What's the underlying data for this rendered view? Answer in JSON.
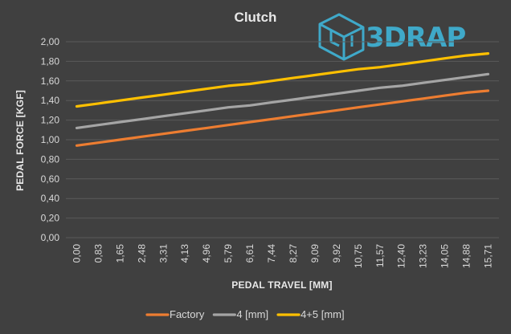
{
  "logo": {
    "text": "3DRAP",
    "color": "#3fa9c9"
  },
  "chart_data": {
    "type": "line",
    "title": "Clutch",
    "xlabel": "PEDAL TRAVEL [MM]",
    "ylabel": "PEDAL FORCE [KGF]",
    "ylim": [
      0,
      2
    ],
    "y_ticks": [
      "0,00",
      "0,20",
      "0,40",
      "0,60",
      "0,80",
      "1,00",
      "1,20",
      "1,40",
      "1,60",
      "1,80",
      "2,00"
    ],
    "categories": [
      "0,00",
      "0,83",
      "1,65",
      "2,48",
      "3,31",
      "4,13",
      "4,96",
      "5,79",
      "6,61",
      "7,44",
      "8,27",
      "9,09",
      "9,92",
      "10,75",
      "11,57",
      "12,40",
      "13,23",
      "14,05",
      "14,88",
      "15,71"
    ],
    "x": [
      0.0,
      0.83,
      1.65,
      2.48,
      3.31,
      4.13,
      4.96,
      5.79,
      6.61,
      7.44,
      8.27,
      9.09,
      9.92,
      10.75,
      11.57,
      12.4,
      13.23,
      14.05,
      14.88,
      15.71
    ],
    "grid": true,
    "legend": "bottom",
    "series": [
      {
        "name": "Factory",
        "color": "#ed7d31",
        "values": [
          0.94,
          0.97,
          1.0,
          1.03,
          1.06,
          1.09,
          1.12,
          1.15,
          1.18,
          1.21,
          1.24,
          1.27,
          1.3,
          1.33,
          1.36,
          1.39,
          1.42,
          1.45,
          1.48,
          1.5
        ]
      },
      {
        "name": "4 [mm]",
        "color": "#a5a5a5",
        "values": [
          1.12,
          1.15,
          1.18,
          1.21,
          1.24,
          1.27,
          1.3,
          1.33,
          1.35,
          1.38,
          1.41,
          1.44,
          1.47,
          1.5,
          1.53,
          1.55,
          1.58,
          1.61,
          1.64,
          1.67
        ]
      },
      {
        "name": "4+5 [mm]",
        "color": "#ffc000",
        "values": [
          1.34,
          1.37,
          1.4,
          1.43,
          1.46,
          1.49,
          1.52,
          1.55,
          1.57,
          1.6,
          1.63,
          1.66,
          1.69,
          1.72,
          1.74,
          1.77,
          1.8,
          1.83,
          1.86,
          1.88
        ]
      }
    ]
  }
}
